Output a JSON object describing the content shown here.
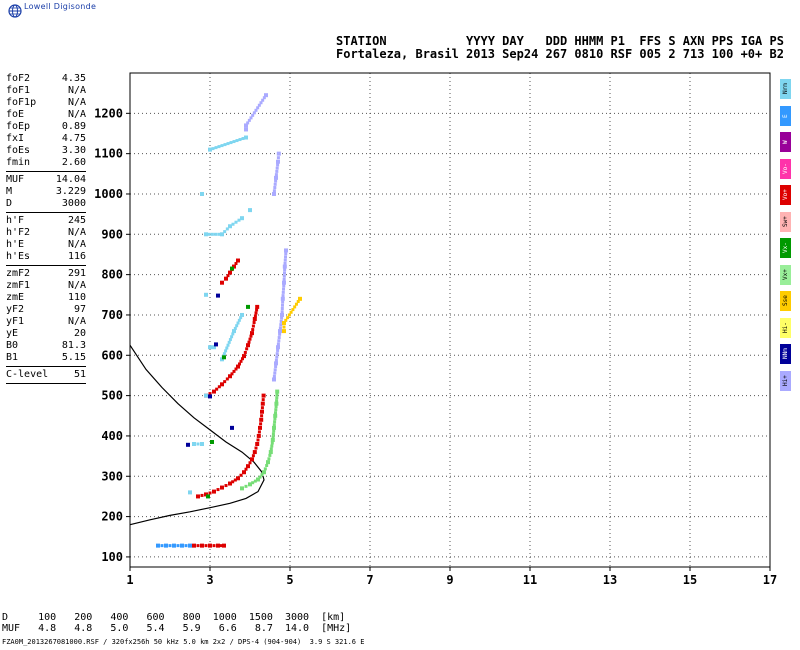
{
  "logo": {
    "text": "Lowell Digisonde",
    "icon": "globe-icon",
    "color": "#1a3ea8"
  },
  "header": {
    "line1": "STATION           YYYY DAY   DDD HHMM P1  FFS S AXN PPS IGA PS",
    "line2": "Fortaleza, Brasil 2013 Sep24 267 0810 RSF 005 2 713 100 +0+ B2"
  },
  "params": {
    "group1": [
      {
        "k": "foF2",
        "v": "4.35"
      },
      {
        "k": "foF1",
        "v": "N/A"
      },
      {
        "k": "foF1p",
        "v": "N/A"
      },
      {
        "k": "foE",
        "v": "N/A"
      },
      {
        "k": "foEp",
        "v": "0.89"
      },
      {
        "k": "fxI",
        "v": "4.75"
      },
      {
        "k": "foEs",
        "v": "3.30"
      },
      {
        "k": "fmin",
        "v": "2.60"
      }
    ],
    "group2": [
      {
        "k": "MUF",
        "v": "14.04"
      },
      {
        "k": "M",
        "v": "3.229"
      },
      {
        "k": "D",
        "v": "3000"
      }
    ],
    "group3": [
      {
        "k": "h'F",
        "v": "245"
      },
      {
        "k": "h'F2",
        "v": "N/A"
      },
      {
        "k": "h'E",
        "v": "N/A"
      },
      {
        "k": "h'Es",
        "v": "116"
      }
    ],
    "group4": [
      {
        "k": "zmF2",
        "v": "291"
      },
      {
        "k": "zmF1",
        "v": "N/A"
      },
      {
        "k": "zmE",
        "v": "110"
      },
      {
        "k": "yF2",
        "v": "97"
      },
      {
        "k": "yF1",
        "v": "N/A"
      },
      {
        "k": "yE",
        "v": "20"
      },
      {
        "k": "B0",
        "v": "81.3"
      },
      {
        "k": "B1",
        "v": "5.15"
      }
    ],
    "group5": [
      {
        "k": "C-level",
        "v": "51"
      }
    ]
  },
  "muf_table": {
    "d_row": "D     100   200   400   600   800  1000  1500  3000  [km]",
    "muf_row": "MUF   4.8   4.8   5.0   5.4   5.9   6.6   8.7  14.0  [MHz]"
  },
  "footer": "FZA0M_2013267081000.RSF / 320fx256h 50 kHz 5.0 km 2x2 / DPS-4 (904-904)  3.9 S 321.6 E",
  "legend": [
    {
      "label": "Nrm",
      "color": "#7fd6f0"
    },
    {
      "label": "E",
      "color": "#3399ff"
    },
    {
      "label": "W",
      "color": "#990099"
    },
    {
      "label": "Vo-",
      "color": "#ff33aa"
    },
    {
      "label": "Vo+",
      "color": "#dd0000"
    },
    {
      "label": "Sw+",
      "color": "#ffb3b3"
    },
    {
      "label": "Vx-",
      "color": "#009900"
    },
    {
      "label": "Vx+",
      "color": "#99ee99"
    },
    {
      "label": "Sse",
      "color": "#ffcc00"
    },
    {
      "label": "Hi-",
      "color": "#ffff66"
    },
    {
      "label": "NNm",
      "color": "#000099"
    },
    {
      "label": "Hi+",
      "color": "#aaaaff"
    }
  ],
  "chart_data": {
    "type": "scatter",
    "title": "",
    "xlabel": "",
    "ylabel": "",
    "xlim": [
      1,
      17
    ],
    "ylim": [
      75,
      1300
    ],
    "xticks": [
      1,
      3,
      5,
      7,
      9,
      11,
      13,
      15,
      17
    ],
    "yticks": [
      100,
      200,
      300,
      400,
      500,
      600,
      700,
      800,
      900,
      1000,
      1100,
      1200
    ],
    "grid": true,
    "series": [
      {
        "name": "O-trace F",
        "color": "#dd0000",
        "points": [
          [
            2.7,
            250
          ],
          [
            2.9,
            255
          ],
          [
            3.1,
            262
          ],
          [
            3.3,
            272
          ],
          [
            3.5,
            282
          ],
          [
            3.7,
            295
          ],
          [
            3.85,
            310
          ],
          [
            3.95,
            325
          ],
          [
            4.05,
            342
          ],
          [
            4.12,
            360
          ],
          [
            4.18,
            380
          ],
          [
            4.22,
            400
          ],
          [
            4.25,
            420
          ],
          [
            4.28,
            440
          ],
          [
            4.3,
            460
          ],
          [
            4.32,
            480
          ],
          [
            4.34,
            500
          ]
        ]
      },
      {
        "name": "X-trace F",
        "color": "#77dd77",
        "points": [
          [
            3.8,
            270
          ],
          [
            4.0,
            280
          ],
          [
            4.2,
            292
          ],
          [
            4.35,
            310
          ],
          [
            4.45,
            335
          ],
          [
            4.52,
            360
          ],
          [
            4.57,
            390
          ],
          [
            4.6,
            420
          ],
          [
            4.63,
            450
          ],
          [
            4.66,
            480
          ],
          [
            4.68,
            510
          ]
        ]
      },
      {
        "name": "O-trace 2F",
        "color": "#dd0000",
        "points": [
          [
            2.9,
            500
          ],
          [
            3.1,
            510
          ],
          [
            3.3,
            528
          ],
          [
            3.5,
            548
          ],
          [
            3.7,
            572
          ],
          [
            3.85,
            598
          ],
          [
            3.95,
            625
          ],
          [
            4.05,
            655
          ],
          [
            4.12,
            690
          ],
          [
            4.18,
            720
          ]
        ]
      },
      {
        "name": "O-trace 3F",
        "color": "#dd0000",
        "points": [
          [
            3.3,
            780
          ],
          [
            3.4,
            790
          ],
          [
            3.5,
            805
          ],
          [
            3.6,
            820
          ],
          [
            3.7,
            835
          ]
        ]
      },
      {
        "name": "Es",
        "color": "#dd0000",
        "points": [
          [
            2.6,
            128
          ],
          [
            2.8,
            128
          ],
          [
            3.0,
            128
          ],
          [
            3.2,
            128
          ],
          [
            3.35,
            128
          ]
        ]
      },
      {
        "name": "Es-other",
        "color": "#3399ff",
        "points": [
          [
            1.7,
            128
          ],
          [
            1.9,
            128
          ],
          [
            2.1,
            128
          ],
          [
            2.3,
            128
          ],
          [
            2.5,
            128
          ]
        ]
      },
      {
        "name": "Hi+",
        "color": "#aaaaff",
        "points": [
          [
            4.6,
            540
          ],
          [
            4.65,
            580
          ],
          [
            4.7,
            620
          ],
          [
            4.75,
            660
          ],
          [
            4.8,
            700
          ],
          [
            4.82,
            740
          ],
          [
            4.85,
            780
          ],
          [
            4.87,
            820
          ],
          [
            4.9,
            860
          ],
          [
            4.6,
            1000
          ],
          [
            4.65,
            1040
          ],
          [
            4.7,
            1080
          ],
          [
            4.72,
            1100
          ],
          [
            3.9,
            1160
          ],
          [
            3.9,
            1170
          ],
          [
            4.4,
            1245
          ]
        ]
      },
      {
        "name": "Sse",
        "color": "#ffcc00",
        "points": [
          [
            4.85,
            660
          ],
          [
            4.85,
            680
          ],
          [
            5.25,
            740
          ]
        ]
      },
      {
        "name": "Nrm",
        "color": "#7fd6f0",
        "points": [
          [
            2.5,
            260
          ],
          [
            2.6,
            380
          ],
          [
            2.8,
            380
          ],
          [
            2.9,
            500
          ],
          [
            3.0,
            620
          ],
          [
            3.1,
            620
          ],
          [
            2.9,
            750
          ],
          [
            3.3,
            590
          ],
          [
            3.6,
            660
          ],
          [
            3.8,
            700
          ],
          [
            2.9,
            900
          ],
          [
            3.3,
            900
          ],
          [
            3.5,
            920
          ],
          [
            3.8,
            940
          ],
          [
            2.8,
            1000
          ],
          [
            3.0,
            1110
          ],
          [
            3.9,
            1140
          ],
          [
            4.0,
            960
          ]
        ]
      },
      {
        "name": "Vx-",
        "color": "#009900",
        "points": [
          [
            2.95,
            250
          ],
          [
            3.05,
            385
          ],
          [
            3.35,
            595
          ],
          [
            3.55,
            815
          ],
          [
            3.95,
            720
          ]
        ]
      },
      {
        "name": "NNm",
        "color": "#000099",
        "points": [
          [
            2.45,
            378
          ],
          [
            3.0,
            498
          ],
          [
            3.15,
            627
          ],
          [
            3.55,
            420
          ],
          [
            3.2,
            748
          ]
        ]
      }
    ],
    "profile": {
      "name": "Profile",
      "color": "#000000",
      "points": [
        [
          1.0,
          180
        ],
        [
          1.5,
          192
        ],
        [
          2.0,
          203
        ],
        [
          2.5,
          212
        ],
        [
          3.0,
          222
        ],
        [
          3.5,
          233
        ],
        [
          3.9,
          245
        ],
        [
          4.2,
          262
        ],
        [
          4.35,
          291
        ],
        [
          4.3,
          310
        ],
        [
          4.1,
          335
        ],
        [
          3.8,
          360
        ],
        [
          3.4,
          385
        ],
        [
          3.0,
          415
        ],
        [
          2.6,
          445
        ],
        [
          2.2,
          480
        ],
        [
          1.8,
          520
        ],
        [
          1.4,
          565
        ],
        [
          1.0,
          625
        ]
      ]
    }
  }
}
